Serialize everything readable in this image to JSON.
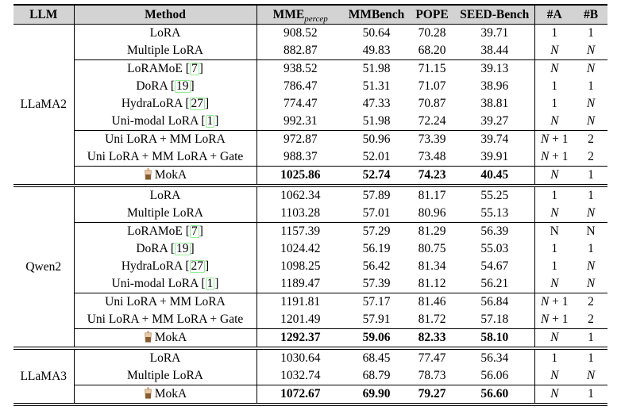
{
  "header": {
    "llm": "LLM",
    "method": "Method",
    "mme_main": "MME",
    "mme_sub": "percep",
    "mmbench": "MMBench",
    "pope": "POPE",
    "seed": "SEED-Bench",
    "a": "#A",
    "b": "#B"
  },
  "colors": {
    "header_bg": "#d3d3d3",
    "rule": "#000000",
    "citation_border": "#90ee90",
    "moka_cup_light": "#e9c9a3",
    "moka_cup_dark": "#8a5a2b"
  },
  "icons": {
    "moka_row_icon": "bubble-tea-cup"
  },
  "sections": [
    {
      "llm": "LLaMA2",
      "groups": [
        [
          {
            "method": "LoRA",
            "cite": null,
            "moka": false,
            "bold": false,
            "mme": "908.52",
            "mmbench": "50.64",
            "pope": "70.28",
            "seed": "39.71",
            "a": "1",
            "ai": false,
            "b": "1",
            "bi": false
          },
          {
            "method": "Multiple LoRA",
            "cite": null,
            "moka": false,
            "bold": false,
            "mme": "882.87",
            "mmbench": "49.83",
            "pope": "68.20",
            "seed": "38.44",
            "a": "N",
            "ai": true,
            "b": "N",
            "bi": true
          }
        ],
        [
          {
            "method": "LoRAMoE",
            "cite": "7",
            "moka": false,
            "bold": false,
            "mme": "938.52",
            "mmbench": "51.98",
            "pope": "71.15",
            "seed": "39.13",
            "a": "N",
            "ai": true,
            "b": "N",
            "bi": true
          },
          {
            "method": "DoRA",
            "cite": "19",
            "moka": false,
            "bold": false,
            "mme": "786.47",
            "mmbench": "51.31",
            "pope": "71.07",
            "seed": "38.96",
            "a": "1",
            "ai": false,
            "b": "1",
            "bi": false
          },
          {
            "method": "HydraLoRA",
            "cite": "27",
            "moka": false,
            "bold": false,
            "mme": "774.47",
            "mmbench": "47.33",
            "pope": "70.87",
            "seed": "38.81",
            "a": "1",
            "ai": false,
            "b": "N",
            "bi": true
          },
          {
            "method": "Uni-modal LoRA",
            "cite": "1",
            "moka": false,
            "bold": false,
            "mme": "992.31",
            "mmbench": "51.98",
            "pope": "72.24",
            "seed": "39.27",
            "a": "N",
            "ai": true,
            "b": "N",
            "bi": true
          }
        ],
        [
          {
            "method": "Uni LoRA + MM LoRA",
            "cite": null,
            "moka": false,
            "bold": false,
            "mme": "972.87",
            "mmbench": "50.96",
            "pope": "73.39",
            "seed": "39.74",
            "a": "N + 1",
            "ai": true,
            "b": "2",
            "bi": false
          },
          {
            "method": "Uni LoRA + MM LoRA + Gate",
            "cite": null,
            "moka": false,
            "bold": false,
            "mme": "988.37",
            "mmbench": "52.01",
            "pope": "73.48",
            "seed": "39.91",
            "a": "N + 1",
            "ai": true,
            "b": "2",
            "bi": false
          }
        ],
        [
          {
            "method": "MokA",
            "cite": null,
            "moka": true,
            "bold": true,
            "mme": "1025.86",
            "mmbench": "52.74",
            "pope": "74.23",
            "seed": "40.45",
            "a": "N",
            "ai": true,
            "b": "1",
            "bi": false
          }
        ]
      ]
    },
    {
      "llm": "Qwen2",
      "groups": [
        [
          {
            "method": "LoRA",
            "cite": null,
            "moka": false,
            "bold": false,
            "mme": "1062.34",
            "mmbench": "57.89",
            "pope": "81.17",
            "seed": "55.25",
            "a": "1",
            "ai": false,
            "b": "1",
            "bi": false
          },
          {
            "method": "Multiple LoRA",
            "cite": null,
            "moka": false,
            "bold": false,
            "mme": "1103.28",
            "mmbench": "57.01",
            "pope": "80.96",
            "seed": "55.13",
            "a": "N",
            "ai": true,
            "b": "N",
            "bi": true
          }
        ],
        [
          {
            "method": "LoRAMoE",
            "cite": "7",
            "moka": false,
            "bold": false,
            "mme": "1157.39",
            "mmbench": "57.29",
            "pope": "81.29",
            "seed": "56.39",
            "a": "N",
            "ai": false,
            "b": "N",
            "bi": false
          },
          {
            "method": "DoRA",
            "cite": "19",
            "moka": false,
            "bold": false,
            "mme": "1024.42",
            "mmbench": "56.19",
            "pope": "80.75",
            "seed": "55.03",
            "a": "1",
            "ai": false,
            "b": "1",
            "bi": false
          },
          {
            "method": "HydraLoRA",
            "cite": "27",
            "moka": false,
            "bold": false,
            "mme": "1098.25",
            "mmbench": "56.42",
            "pope": "81.34",
            "seed": "54.67",
            "a": "1",
            "ai": false,
            "b": "N",
            "bi": true
          },
          {
            "method": "Uni-modal LoRA",
            "cite": "1",
            "moka": false,
            "bold": false,
            "mme": "1189.47",
            "mmbench": "57.39",
            "pope": "81.12",
            "seed": "56.21",
            "a": "N",
            "ai": true,
            "b": "N",
            "bi": true
          }
        ],
        [
          {
            "method": "Uni LoRA + MM LoRA",
            "cite": null,
            "moka": false,
            "bold": false,
            "mme": "1191.81",
            "mmbench": "57.17",
            "pope": "81.46",
            "seed": "56.84",
            "a": "N + 1",
            "ai": true,
            "b": "2",
            "bi": false
          },
          {
            "method": "Uni LoRA + MM LoRA + Gate",
            "cite": null,
            "moka": false,
            "bold": false,
            "mme": "1201.49",
            "mmbench": "57.91",
            "pope": "81.72",
            "seed": "57.18",
            "a": "N + 1",
            "ai": true,
            "b": "2",
            "bi": false
          }
        ],
        [
          {
            "method": "MokA",
            "cite": null,
            "moka": true,
            "bold": true,
            "mme": "1292.37",
            "mmbench": "59.06",
            "pope": "82.33",
            "seed": "58.10",
            "a": "N",
            "ai": true,
            "b": "1",
            "bi": false
          }
        ]
      ]
    },
    {
      "llm": "LLaMA3",
      "groups": [
        [
          {
            "method": "LoRA",
            "cite": null,
            "moka": false,
            "bold": false,
            "mme": "1030.64",
            "mmbench": "68.45",
            "pope": "77.47",
            "seed": "56.34",
            "a": "1",
            "ai": false,
            "b": "1",
            "bi": false
          },
          {
            "method": "Multiple LoRA",
            "cite": null,
            "moka": false,
            "bold": false,
            "mme": "1032.74",
            "mmbench": "68.79",
            "pope": "78.73",
            "seed": "56.06",
            "a": "N",
            "ai": true,
            "b": "N",
            "bi": true
          }
        ],
        [
          {
            "method": "MokA",
            "cite": null,
            "moka": true,
            "bold": true,
            "mme": "1072.67",
            "mmbench": "69.90",
            "pope": "79.27",
            "seed": "56.60",
            "a": "N",
            "ai": true,
            "b": "1",
            "bi": false
          }
        ]
      ]
    }
  ]
}
